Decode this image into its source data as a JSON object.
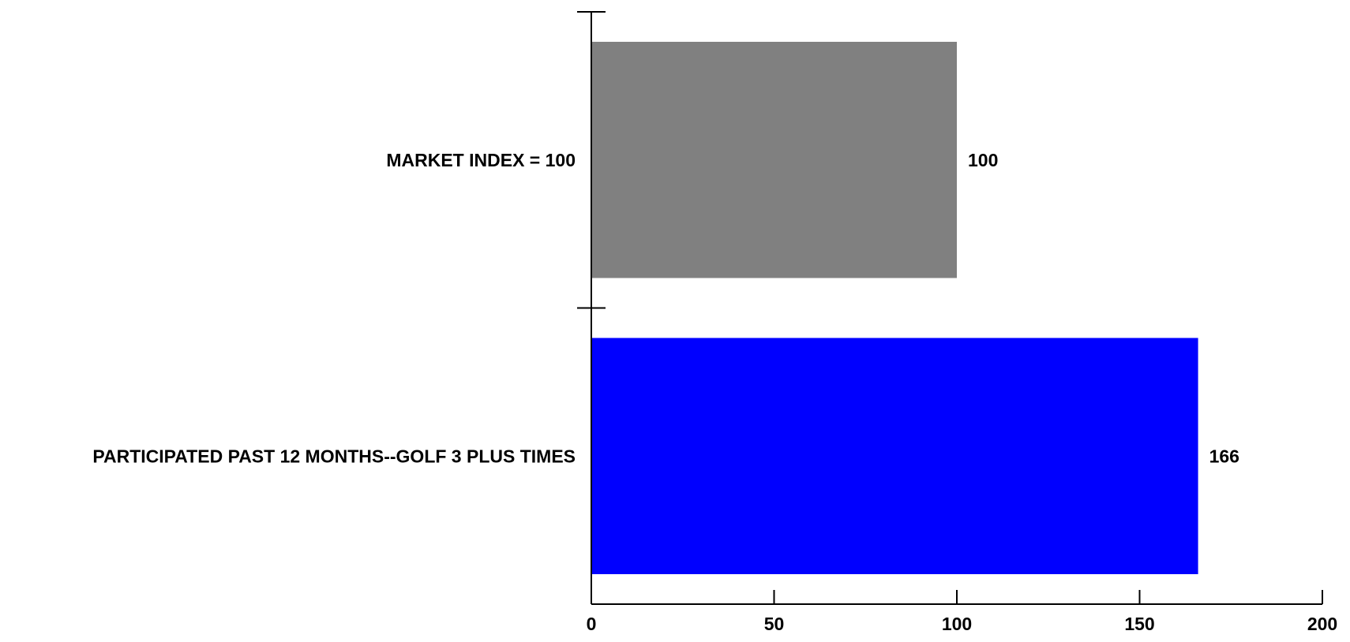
{
  "chart_data": {
    "type": "bar",
    "orientation": "horizontal",
    "title": "",
    "xlabel": "",
    "ylabel": "",
    "categories": [
      "MARKET INDEX = 100",
      "PARTICIPATED PAST 12 MONTHS--GOLF 3 PLUS TIMES"
    ],
    "values": [
      100,
      166
    ],
    "value_labels": [
      "100",
      "166"
    ],
    "bar_colors": [
      "#808080",
      "#0000ff"
    ],
    "xlim": [
      0,
      200
    ],
    "x_ticks": [
      0,
      50,
      100,
      150,
      200
    ],
    "x_tick_labels": [
      "0",
      "50",
      "100",
      "150",
      "200"
    ],
    "grid": false,
    "legend": "none"
  }
}
